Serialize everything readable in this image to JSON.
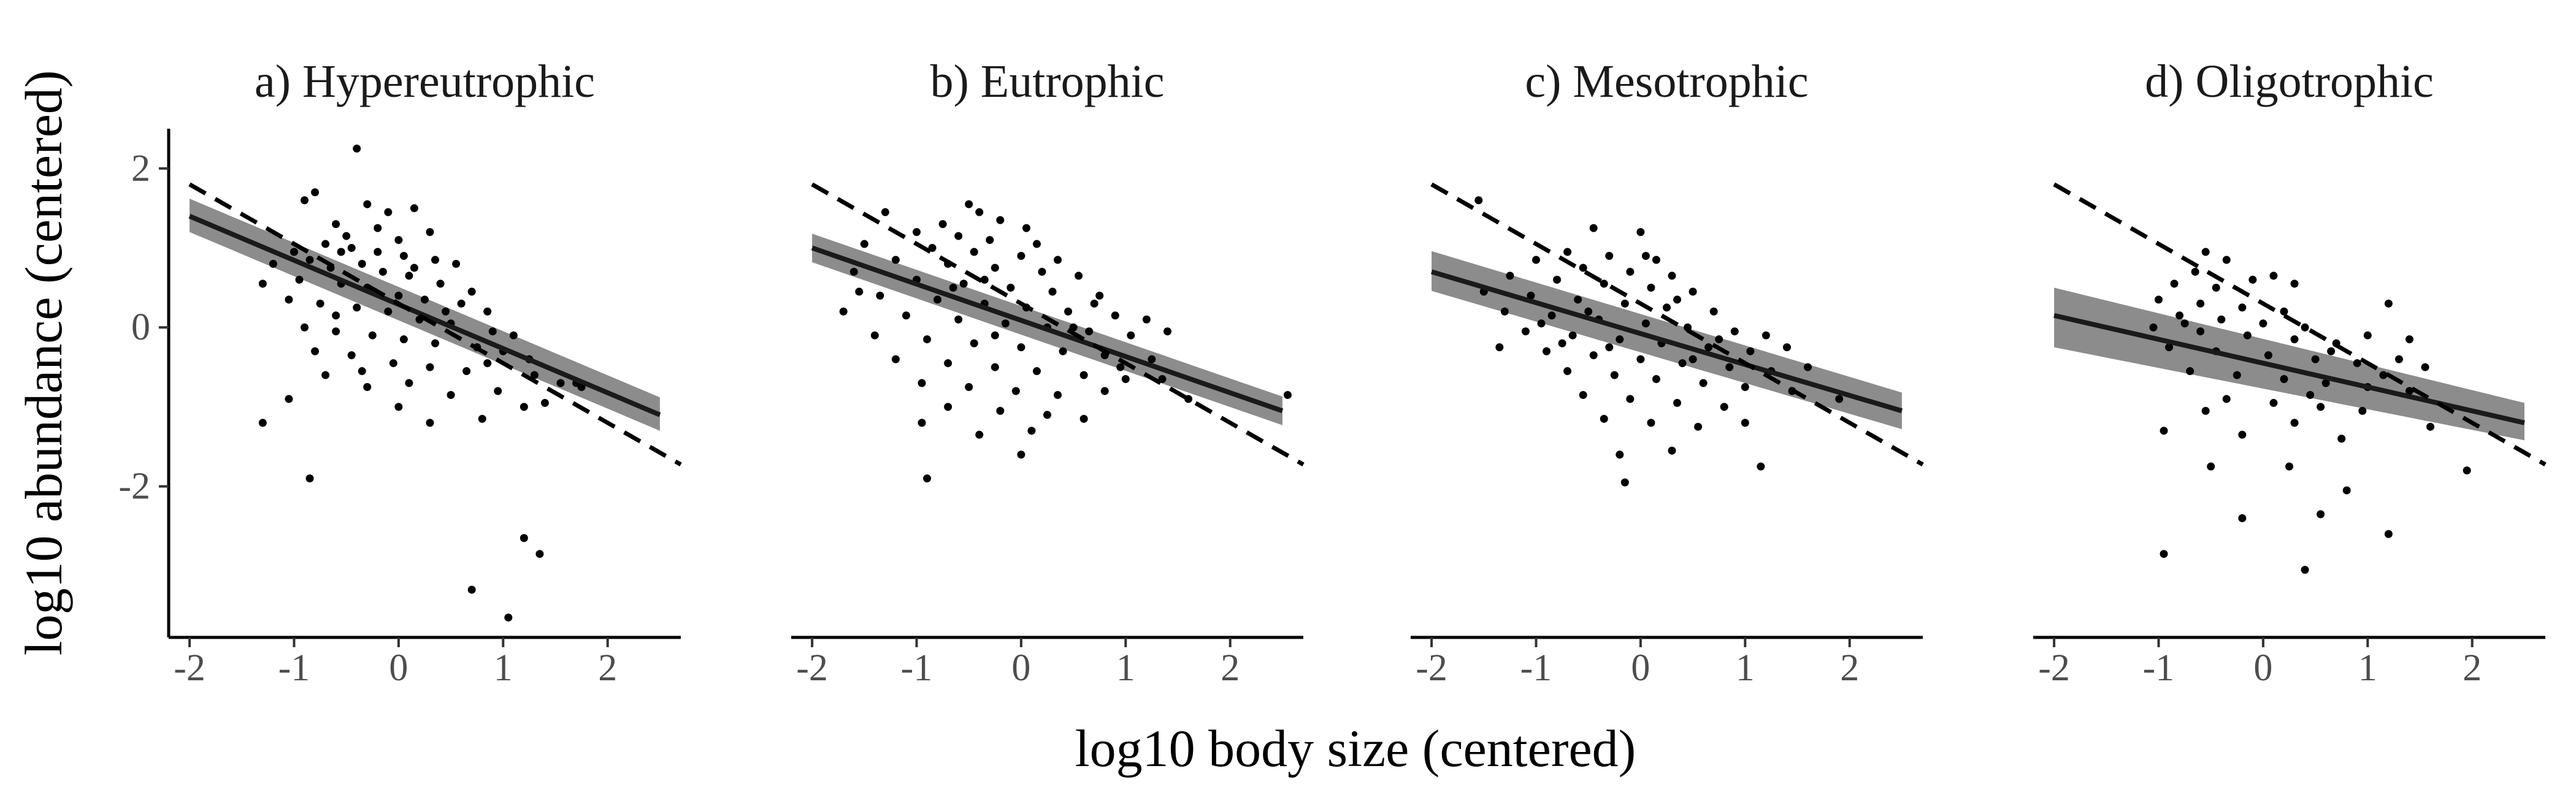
{
  "chart_data": {
    "type": "scatter",
    "layout": "facets",
    "xlabel": "log10 body size (centered)",
    "ylabel": "log10 abundance (centered)",
    "xlim": [
      -2.2,
      2.7
    ],
    "ylim": [
      -3.9,
      2.5
    ],
    "xticks": [
      -2,
      -1,
      0,
      1,
      2
    ],
    "xtick_labels": [
      "-2",
      "-1",
      "0",
      "1",
      "2"
    ],
    "yticks": [
      2,
      0,
      -2
    ],
    "ytick_labels": [
      "2",
      "0",
      "-2"
    ],
    "grid": false,
    "legend": "none",
    "colors": {
      "points": "#000000",
      "fit_line": "#1a1a1a",
      "confidence_band": "#8c8c8c",
      "reference_line": "#000000"
    },
    "reference_line": {
      "style": "dashed",
      "slope": -0.75,
      "intercept": 0.3
    },
    "panels": [
      {
        "title": "a) Hypereutrophic",
        "fit": {
          "x_start": -2.0,
          "x_end": 2.5,
          "y_start": 1.4,
          "y_end": -1.1
        },
        "band": {
          "lower_start": 1.2,
          "upper_start": 1.62,
          "lower_end": -1.3,
          "upper_end": -0.88
        },
        "points": [
          [
            -0.4,
            2.25
          ],
          [
            -0.8,
            1.7
          ],
          [
            -0.9,
            1.6
          ],
          [
            -0.3,
            1.55
          ],
          [
            -0.1,
            1.45
          ],
          [
            0.15,
            1.5
          ],
          [
            0.3,
            1.2
          ],
          [
            -0.6,
            1.3
          ],
          [
            -0.5,
            1.15
          ],
          [
            -0.2,
            1.25
          ],
          [
            0.0,
            1.1
          ],
          [
            -0.7,
            1.05
          ],
          [
            -0.45,
            1.0
          ],
          [
            0.05,
            0.9
          ],
          [
            0.35,
            0.85
          ],
          [
            0.55,
            0.8
          ],
          [
            -1.0,
            0.95
          ],
          [
            -0.85,
            0.85
          ],
          [
            -0.65,
            0.75
          ],
          [
            -0.35,
            0.8
          ],
          [
            -0.15,
            0.7
          ],
          [
            0.1,
            0.65
          ],
          [
            0.4,
            0.55
          ],
          [
            0.7,
            0.45
          ],
          [
            -1.2,
            0.8
          ],
          [
            -0.95,
            0.6
          ],
          [
            -0.55,
            0.55
          ],
          [
            -0.3,
            0.5
          ],
          [
            0.0,
            0.4
          ],
          [
            0.25,
            0.35
          ],
          [
            0.6,
            0.3
          ],
          [
            0.85,
            0.2
          ],
          [
            -1.3,
            0.55
          ],
          [
            -1.05,
            0.35
          ],
          [
            -0.75,
            0.3
          ],
          [
            -0.4,
            0.25
          ],
          [
            -0.1,
            0.2
          ],
          [
            0.2,
            0.1
          ],
          [
            0.5,
            0.05
          ],
          [
            0.9,
            -0.05
          ],
          [
            1.1,
            -0.1
          ],
          [
            -0.9,
            0.0
          ],
          [
            -0.6,
            -0.05
          ],
          [
            -0.25,
            -0.1
          ],
          [
            0.05,
            -0.15
          ],
          [
            0.35,
            -0.2
          ],
          [
            0.75,
            -0.25
          ],
          [
            1.0,
            -0.3
          ],
          [
            1.25,
            -0.4
          ],
          [
            -0.8,
            -0.3
          ],
          [
            -0.45,
            -0.35
          ],
          [
            -0.05,
            -0.45
          ],
          [
            0.3,
            -0.5
          ],
          [
            0.65,
            -0.55
          ],
          [
            1.3,
            -0.6
          ],
          [
            1.55,
            -0.7
          ],
          [
            -0.7,
            -0.6
          ],
          [
            -0.3,
            -0.75
          ],
          [
            0.1,
            -0.7
          ],
          [
            0.5,
            -0.85
          ],
          [
            0.95,
            -0.8
          ],
          [
            1.4,
            -0.95
          ],
          [
            1.7,
            -0.7
          ],
          [
            -1.05,
            -0.9
          ],
          [
            0.0,
            -1.0
          ],
          [
            0.3,
            -1.2
          ],
          [
            1.2,
            -1.0
          ],
          [
            -1.3,
            -1.2
          ],
          [
            0.8,
            -1.15
          ],
          [
            -0.85,
            -1.9
          ],
          [
            1.2,
            -2.65
          ],
          [
            1.35,
            -2.85
          ],
          [
            0.7,
            -3.3
          ],
          [
            1.05,
            -3.65
          ],
          [
            -0.55,
            0.95
          ],
          [
            -0.2,
            0.95
          ],
          [
            0.15,
            0.75
          ],
          [
            -0.6,
            0.15
          ],
          [
            0.45,
            0.2
          ],
          [
            -0.35,
            -0.55
          ],
          [
            0.85,
            -0.45
          ],
          [
            1.75,
            -0.75
          ]
        ]
      },
      {
        "title": "b) Eutrophic",
        "fit": {
          "x_start": -2.0,
          "x_end": 2.5,
          "y_start": 1.0,
          "y_end": -1.05
        },
        "band": {
          "lower_start": 0.82,
          "upper_start": 1.18,
          "lower_end": -1.23,
          "upper_end": -0.87
        },
        "points": [
          [
            -0.5,
            1.55
          ],
          [
            -0.4,
            1.45
          ],
          [
            -1.3,
            1.45
          ],
          [
            -0.75,
            1.3
          ],
          [
            -0.2,
            1.35
          ],
          [
            0.05,
            1.25
          ],
          [
            -1.0,
            1.2
          ],
          [
            -0.6,
            1.15
          ],
          [
            -0.3,
            1.1
          ],
          [
            0.15,
            1.05
          ],
          [
            -1.5,
            1.05
          ],
          [
            -0.85,
            1.0
          ],
          [
            -0.45,
            0.95
          ],
          [
            0.0,
            0.9
          ],
          [
            0.35,
            0.85
          ],
          [
            -1.2,
            0.85
          ],
          [
            -0.7,
            0.8
          ],
          [
            -0.25,
            0.75
          ],
          [
            0.2,
            0.7
          ],
          [
            0.55,
            0.65
          ],
          [
            -1.6,
            0.7
          ],
          [
            -1.0,
            0.6
          ],
          [
            -0.55,
            0.55
          ],
          [
            -0.1,
            0.5
          ],
          [
            0.3,
            0.45
          ],
          [
            0.75,
            0.4
          ],
          [
            -1.35,
            0.4
          ],
          [
            -0.8,
            0.35
          ],
          [
            -0.35,
            0.3
          ],
          [
            0.05,
            0.25
          ],
          [
            0.45,
            0.2
          ],
          [
            0.9,
            0.15
          ],
          [
            1.2,
            0.1
          ],
          [
            -1.7,
            0.2
          ],
          [
            -1.1,
            0.15
          ],
          [
            -0.6,
            0.1
          ],
          [
            -0.15,
            0.05
          ],
          [
            0.25,
            0.0
          ],
          [
            0.65,
            -0.05
          ],
          [
            1.05,
            -0.1
          ],
          [
            1.4,
            -0.05
          ],
          [
            -1.4,
            -0.1
          ],
          [
            -0.9,
            -0.15
          ],
          [
            -0.45,
            -0.2
          ],
          [
            0.0,
            -0.25
          ],
          [
            0.4,
            -0.3
          ],
          [
            0.8,
            -0.35
          ],
          [
            1.25,
            -0.4
          ],
          [
            -1.2,
            -0.4
          ],
          [
            -0.7,
            -0.45
          ],
          [
            -0.25,
            -0.5
          ],
          [
            0.15,
            -0.55
          ],
          [
            0.6,
            -0.6
          ],
          [
            1.0,
            -0.65
          ],
          [
            -0.95,
            -0.7
          ],
          [
            -0.5,
            -0.75
          ],
          [
            -0.05,
            -0.8
          ],
          [
            0.35,
            -0.85
          ],
          [
            0.8,
            -0.8
          ],
          [
            1.35,
            -0.65
          ],
          [
            -0.7,
            -1.0
          ],
          [
            -0.2,
            -1.05
          ],
          [
            0.25,
            -1.1
          ],
          [
            0.6,
            -1.15
          ],
          [
            -0.95,
            -1.2
          ],
          [
            0.1,
            -1.3
          ],
          [
            -0.4,
            -1.35
          ],
          [
            0.0,
            -1.6
          ],
          [
            -0.9,
            -1.9
          ],
          [
            1.6,
            -0.9
          ],
          [
            2.55,
            -0.85
          ],
          [
            -0.65,
            0.5
          ],
          [
            0.5,
            0.0
          ],
          [
            -0.25,
            -0.1
          ],
          [
            0.7,
            0.3
          ],
          [
            -1.55,
            0.45
          ],
          [
            0.95,
            -0.5
          ],
          [
            -0.35,
            0.6
          ]
        ]
      },
      {
        "title": "c) Mesotrophic",
        "fit": {
          "x_start": -2.0,
          "x_end": 2.5,
          "y_start": 0.7,
          "y_end": -1.05
        },
        "band": {
          "lower_start": 0.46,
          "upper_start": 0.96,
          "lower_end": -1.28,
          "upper_end": -0.82
        },
        "points": [
          [
            -1.55,
            1.6
          ],
          [
            -0.45,
            1.25
          ],
          [
            0.0,
            1.2
          ],
          [
            -0.7,
            0.95
          ],
          [
            -0.3,
            0.9
          ],
          [
            0.15,
            0.85
          ],
          [
            -1.0,
            0.85
          ],
          [
            -0.55,
            0.75
          ],
          [
            -0.1,
            0.7
          ],
          [
            0.3,
            0.65
          ],
          [
            -1.25,
            0.65
          ],
          [
            -0.8,
            0.6
          ],
          [
            -0.35,
            0.55
          ],
          [
            0.1,
            0.5
          ],
          [
            0.5,
            0.45
          ],
          [
            -1.5,
            0.45
          ],
          [
            -1.05,
            0.4
          ],
          [
            -0.6,
            0.35
          ],
          [
            -0.15,
            0.3
          ],
          [
            0.25,
            0.25
          ],
          [
            0.7,
            0.2
          ],
          [
            -1.3,
            0.2
          ],
          [
            -0.85,
            0.15
          ],
          [
            -0.4,
            0.1
          ],
          [
            0.05,
            0.05
          ],
          [
            0.45,
            0.0
          ],
          [
            0.9,
            -0.05
          ],
          [
            -1.1,
            -0.05
          ],
          [
            -0.65,
            -0.1
          ],
          [
            -0.2,
            -0.15
          ],
          [
            0.2,
            -0.2
          ],
          [
            0.65,
            -0.25
          ],
          [
            1.05,
            -0.3
          ],
          [
            1.4,
            -0.25
          ],
          [
            -0.9,
            -0.3
          ],
          [
            -0.45,
            -0.35
          ],
          [
            0.0,
            -0.4
          ],
          [
            0.4,
            -0.45
          ],
          [
            0.85,
            -0.5
          ],
          [
            1.25,
            -0.55
          ],
          [
            1.6,
            -0.5
          ],
          [
            -0.7,
            -0.55
          ],
          [
            -0.25,
            -0.6
          ],
          [
            0.15,
            -0.65
          ],
          [
            0.6,
            -0.7
          ],
          [
            1.0,
            -0.75
          ],
          [
            1.45,
            -0.8
          ],
          [
            -0.55,
            -0.85
          ],
          [
            -0.1,
            -0.9
          ],
          [
            0.35,
            -0.95
          ],
          [
            0.8,
            -1.0
          ],
          [
            -0.35,
            -1.15
          ],
          [
            0.1,
            -1.2
          ],
          [
            0.55,
            -1.25
          ],
          [
            -0.2,
            -1.6
          ],
          [
            0.3,
            -1.55
          ],
          [
            1.0,
            -1.2
          ],
          [
            1.9,
            -0.9
          ],
          [
            -0.15,
            -1.95
          ],
          [
            1.15,
            -1.75
          ],
          [
            -0.5,
            0.2
          ],
          [
            0.35,
            0.35
          ],
          [
            -0.95,
            0.05
          ],
          [
            0.75,
            -0.15
          ],
          [
            -0.3,
            -0.25
          ],
          [
            1.2,
            -0.1
          ],
          [
            0.05,
            0.9
          ],
          [
            -0.75,
            -0.2
          ],
          [
            0.5,
            -0.4
          ],
          [
            -1.35,
            -0.25
          ]
        ]
      },
      {
        "title": "d) Oligotrophic",
        "fit": {
          "x_start": -2.0,
          "x_end": 2.5,
          "y_start": 0.15,
          "y_end": -1.2
        },
        "band": {
          "lower_start": -0.25,
          "upper_start": 0.5,
          "lower_end": -1.42,
          "upper_end": -0.95
        },
        "points": [
          [
            -0.55,
            0.95
          ],
          [
            -0.35,
            0.85
          ],
          [
            -0.65,
            0.7
          ],
          [
            0.1,
            0.65
          ],
          [
            0.3,
            0.55
          ],
          [
            -0.85,
            0.55
          ],
          [
            -0.45,
            0.5
          ],
          [
            -1.0,
            0.35
          ],
          [
            -0.6,
            0.3
          ],
          [
            -0.2,
            0.25
          ],
          [
            0.2,
            0.2
          ],
          [
            -0.8,
            0.15
          ],
          [
            -0.4,
            0.1
          ],
          [
            0.0,
            0.05
          ],
          [
            0.4,
            0.0
          ],
          [
            1.2,
            0.3
          ],
          [
            -1.05,
            0.0
          ],
          [
            -0.6,
            -0.05
          ],
          [
            -0.15,
            -0.1
          ],
          [
            0.3,
            -0.15
          ],
          [
            0.7,
            -0.2
          ],
          [
            1.0,
            -0.1
          ],
          [
            1.4,
            -0.15
          ],
          [
            -0.9,
            -0.25
          ],
          [
            -0.45,
            -0.3
          ],
          [
            0.05,
            -0.35
          ],
          [
            0.5,
            -0.4
          ],
          [
            0.9,
            -0.45
          ],
          [
            1.3,
            -0.4
          ],
          [
            1.55,
            -0.5
          ],
          [
            -0.7,
            -0.55
          ],
          [
            -0.25,
            -0.6
          ],
          [
            0.2,
            -0.65
          ],
          [
            0.6,
            -0.7
          ],
          [
            1.0,
            -0.75
          ],
          [
            1.4,
            -0.8
          ],
          [
            -0.35,
            -0.9
          ],
          [
            0.1,
            -0.95
          ],
          [
            0.55,
            -1.0
          ],
          [
            0.95,
            -1.05
          ],
          [
            -0.55,
            -1.05
          ],
          [
            0.3,
            -1.2
          ],
          [
            -0.2,
            -1.35
          ],
          [
            0.75,
            -1.4
          ],
          [
            -0.95,
            -1.3
          ],
          [
            -0.5,
            -1.75
          ],
          [
            0.25,
            -1.75
          ],
          [
            0.8,
            -2.05
          ],
          [
            -0.2,
            -2.4
          ],
          [
            0.55,
            -2.35
          ],
          [
            1.2,
            -2.6
          ],
          [
            -0.95,
            -2.85
          ],
          [
            0.4,
            -3.05
          ],
          [
            1.95,
            -1.8
          ],
          [
            1.6,
            -1.25
          ],
          [
            -0.1,
            0.6
          ],
          [
            0.65,
            -0.3
          ],
          [
            1.15,
            -0.6
          ],
          [
            -0.75,
            0.05
          ],
          [
            0.45,
            -0.85
          ]
        ]
      }
    ]
  }
}
